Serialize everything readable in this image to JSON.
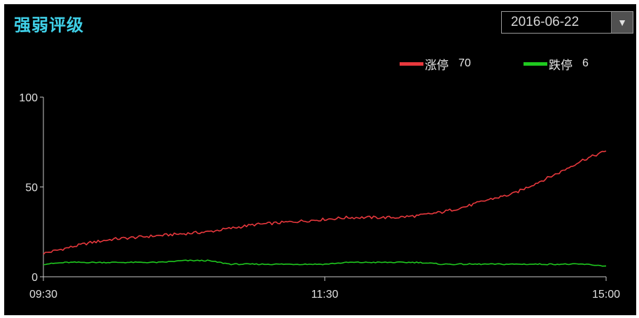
{
  "title": "强弱评级",
  "date_picker": {
    "value": "2016-06-22",
    "arrow_icon": "chevron-down-icon"
  },
  "colors": {
    "up": "#e8383d",
    "down": "#1fc91f",
    "title": "#3fd0e8",
    "axis": "#c8c8c8"
  },
  "chart_data": {
    "type": "line",
    "title": "",
    "xlabel": "",
    "ylabel": "",
    "ylim": [
      0,
      100
    ],
    "yticks": [
      0,
      50,
      100
    ],
    "xticks": [
      "09:30",
      "11:30",
      "15:00"
    ],
    "x": [
      "09:30",
      "09:40",
      "09:50",
      "10:00",
      "10:10",
      "10:20",
      "10:30",
      "10:40",
      "10:50",
      "11:00",
      "11:10",
      "11:20",
      "11:30",
      "13:10",
      "13:20",
      "13:30",
      "13:40",
      "13:50",
      "14:00",
      "14:10",
      "14:20",
      "14:30",
      "14:40",
      "14:50",
      "15:00"
    ],
    "legend_position": "top-right",
    "grid": false,
    "series": [
      {
        "name": "涨停",
        "count": "70",
        "color": "#e8383d",
        "values": [
          13,
          16,
          19,
          21,
          22,
          23,
          24,
          25,
          27,
          29,
          30,
          31,
          32,
          33,
          33,
          33,
          34,
          36,
          39,
          43,
          46,
          52,
          58,
          65,
          70
        ]
      },
      {
        "name": "跌停",
        "count": "6",
        "color": "#1fc91f",
        "values": [
          7,
          8,
          8,
          8,
          8,
          8,
          9,
          9,
          7,
          7,
          7,
          7,
          7,
          8,
          8,
          8,
          8,
          7,
          7,
          7,
          7,
          7,
          7,
          7,
          6
        ]
      }
    ]
  }
}
